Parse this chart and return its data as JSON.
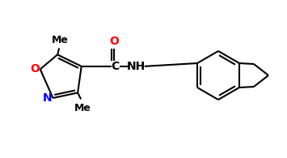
{
  "background_color": "#ffffff",
  "bond_color": "#000000",
  "atom_colors": {
    "O": "#ff0000",
    "N": "#0000ff",
    "C": "#000000",
    "Me": "#000000",
    "NH": "#000000"
  },
  "font_size_labels": 10,
  "font_size_me": 9,
  "lw": 1.5
}
